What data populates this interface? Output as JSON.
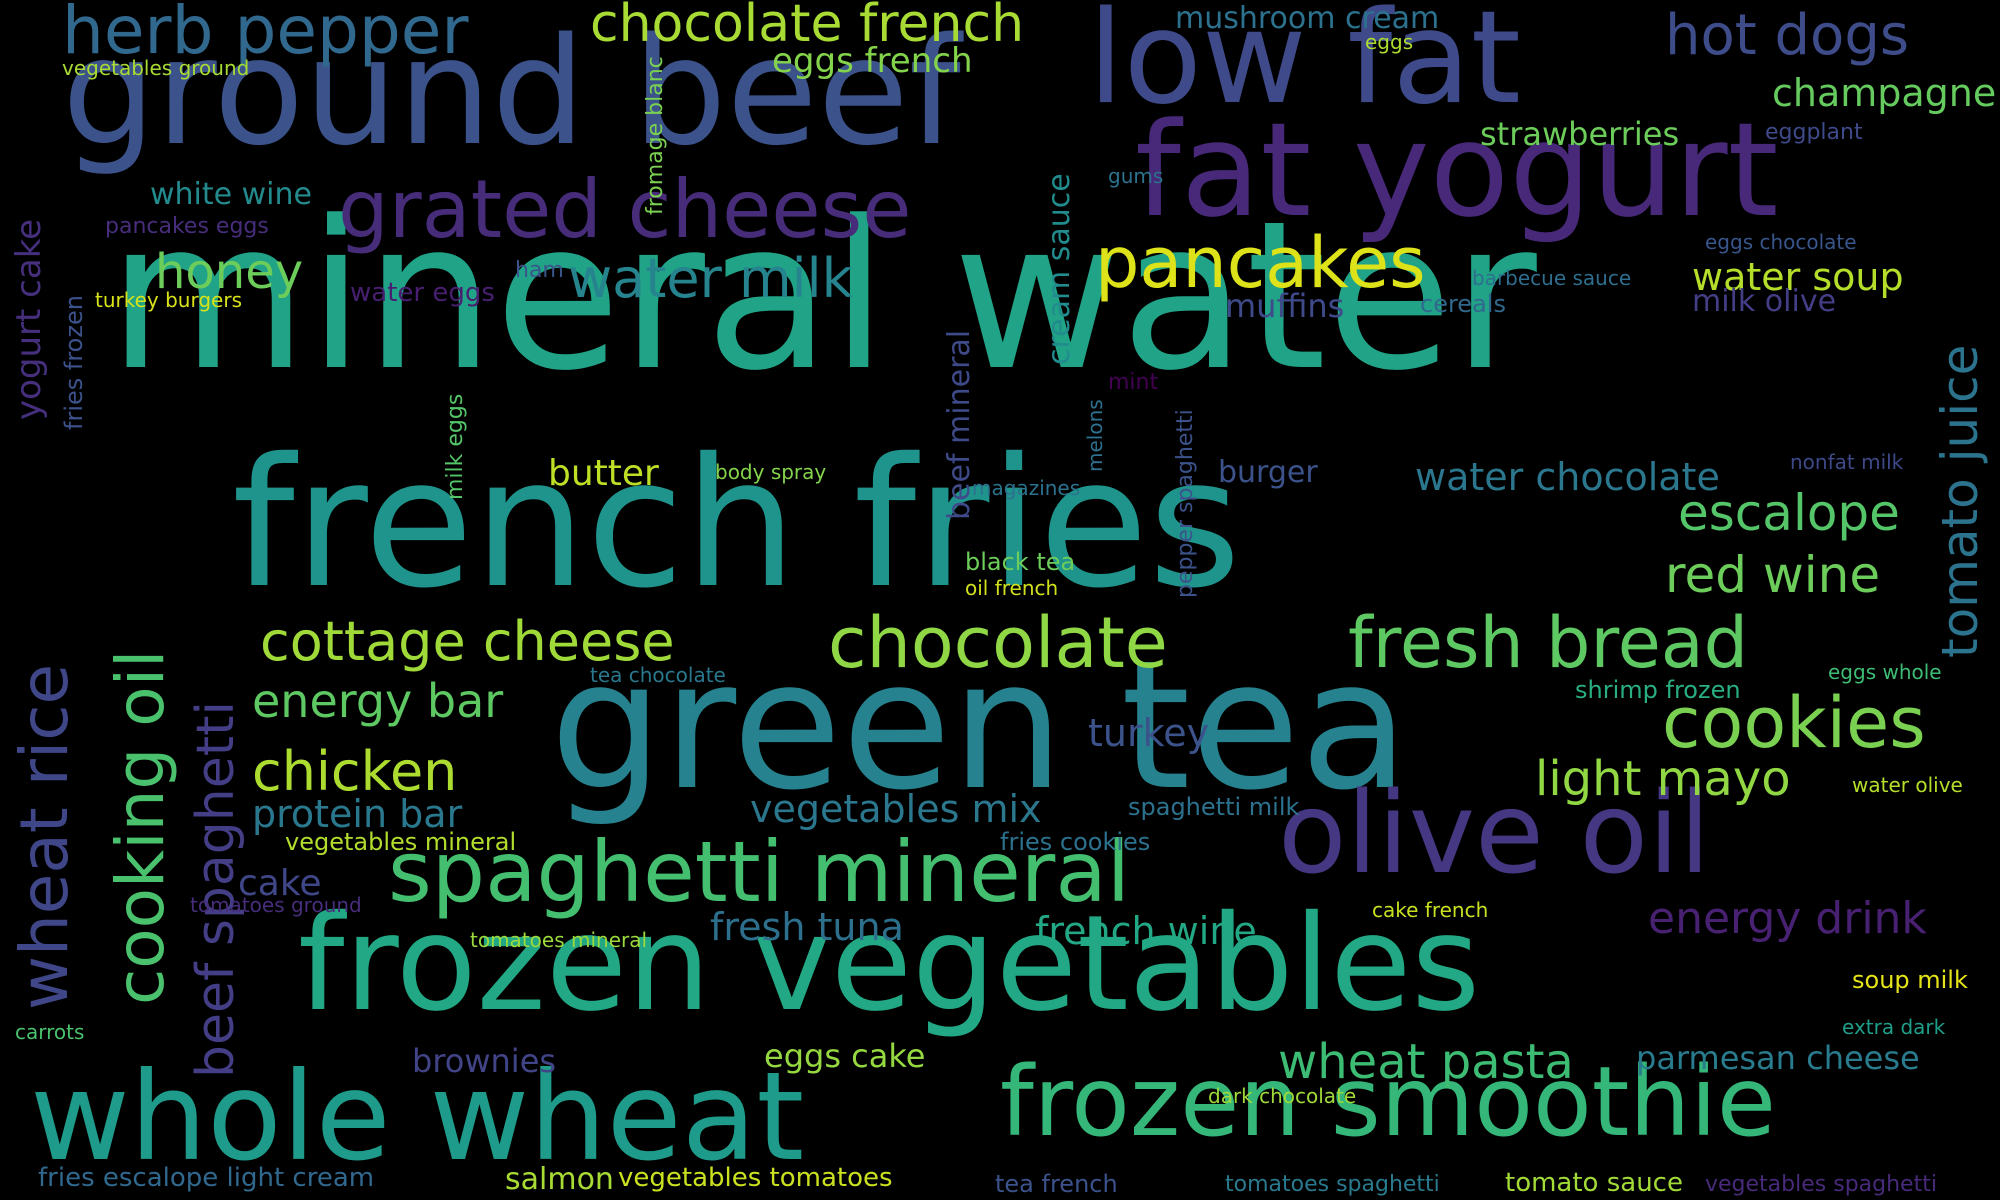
{
  "cloud": {
    "words": [
      {
        "text": "mineral water",
        "color": "#20a386"
      },
      {
        "text": "french fries",
        "color": "#1f948c"
      },
      {
        "text": "green tea",
        "color": "#26828e"
      },
      {
        "text": "frozen vegetables",
        "color": "#22a884"
      },
      {
        "text": "ground beef",
        "color": "#3b528b"
      },
      {
        "text": "whole wheat",
        "color": "#1e9b8a"
      },
      {
        "text": "fat yogurt",
        "color": "#482878"
      },
      {
        "text": "low fat",
        "color": "#3e4a89"
      },
      {
        "text": "olive oil",
        "color": "#453781"
      },
      {
        "text": "frozen smoothie",
        "color": "#35b779"
      },
      {
        "text": "spaghetti mineral",
        "color": "#44bf70"
      },
      {
        "text": "grated cheese",
        "color": "#472c7a"
      },
      {
        "text": "pancakes",
        "color": "#dde318"
      },
      {
        "text": "chocolate",
        "color": "#8fd744"
      },
      {
        "text": "fresh bread",
        "color": "#5ec962"
      },
      {
        "text": "cookies",
        "color": "#7ad151"
      },
      {
        "text": "herb pepper",
        "color": "#31688e"
      },
      {
        "text": "cooking oil",
        "color": "#4ac16d"
      },
      {
        "text": "wheat rice",
        "color": "#3f4788"
      },
      {
        "text": "chocolate french",
        "color": "#a8db34"
      },
      {
        "text": "hot dogs",
        "color": "#3e4c8a"
      },
      {
        "text": "cottage cheese",
        "color": "#a0da39"
      },
      {
        "text": "water milk",
        "color": "#25848e"
      },
      {
        "text": "escalope",
        "color": "#54c568"
      },
      {
        "text": "red wine",
        "color": "#6ccd5a"
      },
      {
        "text": "chicken",
        "color": "#addc30"
      },
      {
        "text": "energy bar",
        "color": "#5ec962"
      },
      {
        "text": "light mayo",
        "color": "#90d743"
      },
      {
        "text": "wheat pasta",
        "color": "#3dbc74"
      },
      {
        "text": "energy drink",
        "color": "#482173"
      },
      {
        "text": "beef spaghetti",
        "color": "#433e85"
      },
      {
        "text": "tomato juice",
        "color": "#2c738e"
      },
      {
        "text": "honey",
        "color": "#6ccd5a"
      },
      {
        "text": "water soup",
        "color": "#b5de2b"
      },
      {
        "text": "vegetables mix",
        "color": "#2a778e"
      },
      {
        "text": "protein bar",
        "color": "#2a788e"
      },
      {
        "text": "fresh tuna",
        "color": "#2d708e"
      },
      {
        "text": "french wine",
        "color": "#22a884"
      },
      {
        "text": "water chocolate",
        "color": "#2a778e"
      },
      {
        "text": "champagne",
        "color": "#65cb5e"
      },
      {
        "text": "turkey",
        "color": "#3b528b"
      },
      {
        "text": "cake",
        "color": "#3f4788"
      },
      {
        "text": "butter",
        "color": "#bddf26"
      },
      {
        "text": "eggs french",
        "color": "#84d44b"
      },
      {
        "text": "brownies",
        "color": "#414487"
      },
      {
        "text": "eggs cake",
        "color": "#95d840"
      },
      {
        "text": "parmesan cheese",
        "color": "#297b8e"
      },
      {
        "text": "strawberries",
        "color": "#6ccd5a"
      },
      {
        "text": "muffins",
        "color": "#3e4a89"
      },
      {
        "text": "salmon",
        "color": "#a8db34"
      },
      {
        "text": "white wine",
        "color": "#238a8d"
      },
      {
        "text": "mushroom cream",
        "color": "#2c728e"
      },
      {
        "text": "yogurt cake",
        "color": "#46307e"
      },
      {
        "text": "burger",
        "color": "#3b528b"
      },
      {
        "text": "cream sauce",
        "color": "#228b8d"
      },
      {
        "text": "beef mineral",
        "color": "#3e4a89"
      },
      {
        "text": "milk olive",
        "color": "#433e85"
      },
      {
        "text": "fries escalope light cream",
        "color": "#31688e"
      },
      {
        "text": "vegetables tomatoes",
        "color": "#cae11f"
      },
      {
        "text": "tomato sauce",
        "color": "#a2da37"
      },
      {
        "text": "water eggs",
        "color": "#481f70"
      },
      {
        "text": "vegetables mineral",
        "color": "#b2dd2d"
      },
      {
        "text": "spaghetti milk",
        "color": "#2c728e"
      },
      {
        "text": "fries cookies",
        "color": "#2c728e"
      },
      {
        "text": "black tea",
        "color": "#6ccd5a"
      },
      {
        "text": "shrimp frozen",
        "color": "#29af7f"
      },
      {
        "text": "fromage blanc",
        "color": "#7ad151"
      },
      {
        "text": "cereals",
        "color": "#31688e"
      },
      {
        "text": "tea french",
        "color": "#3b528b"
      },
      {
        "text": "fries frozen",
        "color": "#3b528b"
      },
      {
        "text": "pepper spaghetti",
        "color": "#3b528b"
      },
      {
        "text": "soup milk",
        "color": "#e5e419"
      },
      {
        "text": "pancakes eggs",
        "color": "#472d7b"
      },
      {
        "text": "ham",
        "color": "#3a548c"
      },
      {
        "text": "tomatoes spaghetti",
        "color": "#297a8e"
      },
      {
        "text": "vegetables spaghetti",
        "color": "#472a7a"
      },
      {
        "text": "eggplant",
        "color": "#3e4a89"
      },
      {
        "text": "milk eggs",
        "color": "#54c568"
      },
      {
        "text": "body spray",
        "color": "#84d44b"
      },
      {
        "text": "magazines",
        "color": "#2c728e"
      },
      {
        "text": "oil french",
        "color": "#d0e11c"
      },
      {
        "text": "dark chocolate",
        "color": "#a0da39"
      },
      {
        "text": "cake french",
        "color": "#c8e020"
      },
      {
        "text": "barbecue sauce",
        "color": "#2e6e8e"
      },
      {
        "text": "vegetables ground",
        "color": "#a8db34"
      },
      {
        "text": "eggs chocolate",
        "color": "#39568c"
      },
      {
        "text": "turkey burgers",
        "color": "#d8e219"
      },
      {
        "text": "tea chocolate",
        "color": "#2a788e"
      },
      {
        "text": "eggs whole",
        "color": "#3dbc74"
      },
      {
        "text": "water olive",
        "color": "#b5de2b"
      },
      {
        "text": "nonfat milk",
        "color": "#3e4989"
      },
      {
        "text": "tomatoes ground",
        "color": "#472d7b"
      },
      {
        "text": "tomatoes mineral",
        "color": "#9bd93c"
      },
      {
        "text": "mint",
        "color": "#440154"
      },
      {
        "text": "melons",
        "color": "#2d718e"
      },
      {
        "text": "gums",
        "color": "#2c728e"
      },
      {
        "text": "eggs",
        "color": "#addc30"
      },
      {
        "text": "carrots",
        "color": "#4ac16d"
      },
      {
        "text": "extra dark",
        "color": "#1f9e89"
      }
    ]
  }
}
